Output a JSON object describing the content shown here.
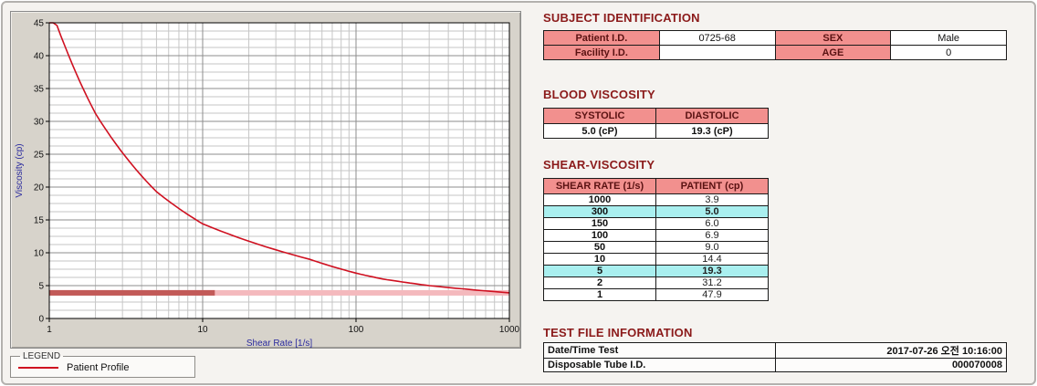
{
  "colors": {
    "heading": "#8b1a1a",
    "table_header_bg": "#f2908e",
    "table_header_text": "#5a1212",
    "highlight_row_bg": "#a9efef",
    "curve": "#cf1020",
    "band": "#f4b9bd",
    "band_dark": "#c25a58",
    "axis_label": "#2a2a9e"
  },
  "legend": {
    "title": "LEGEND",
    "items": [
      {
        "label": "Patient Profile",
        "color": "#cf1020"
      }
    ]
  },
  "subject_identification": {
    "heading": "SUBJECT IDENTIFICATION",
    "rows": [
      {
        "label1": "Patient I.D.",
        "value1": "0725-68",
        "label2": "SEX",
        "value2": "Male"
      },
      {
        "label1": "Facility I.D.",
        "value1": "",
        "label2": "AGE",
        "value2": "0"
      }
    ]
  },
  "blood_viscosity": {
    "heading": "BLOOD VISCOSITY",
    "headers": [
      "SYSTOLIC",
      "DIASTOLIC"
    ],
    "values": [
      "5.0 (cP)",
      "19.3 (cP)"
    ]
  },
  "shear_viscosity": {
    "heading": "SHEAR-VISCOSITY",
    "headers": [
      "SHEAR RATE (1/s)",
      "PATIENT (cp)"
    ],
    "rows": [
      {
        "rate": "1000",
        "value": "3.9",
        "highlight": false
      },
      {
        "rate": "300",
        "value": "5.0",
        "highlight": true
      },
      {
        "rate": "150",
        "value": "6.0",
        "highlight": false
      },
      {
        "rate": "100",
        "value": "6.9",
        "highlight": false
      },
      {
        "rate": "50",
        "value": "9.0",
        "highlight": false
      },
      {
        "rate": "10",
        "value": "14.4",
        "highlight": false
      },
      {
        "rate": "5",
        "value": "19.3",
        "highlight": true
      },
      {
        "rate": "2",
        "value": "31.2",
        "highlight": false
      },
      {
        "rate": "1",
        "value": "47.9",
        "highlight": false
      }
    ]
  },
  "test_file_information": {
    "heading": "TEST FILE INFORMATION",
    "rows": [
      {
        "label": "Date/Time Test",
        "value": "2017-07-26 오전 10:16:00"
      },
      {
        "label": "Disposable Tube I.D.",
        "value": "000070008"
      }
    ]
  },
  "chart_data": {
    "type": "line",
    "title": "",
    "xlabel": "Shear Rate [1/s]",
    "ylabel": "Viscosity (cp)",
    "x_scale": "log",
    "xlim": [
      1,
      1000
    ],
    "ylim": [
      0,
      45
    ],
    "x_ticks": [
      1,
      10,
      100,
      1000
    ],
    "y_ticks": [
      0,
      5,
      10,
      15,
      20,
      25,
      30,
      35,
      40,
      45
    ],
    "grid": true,
    "legend_position": "bottom-left-outside",
    "series": [
      {
        "name": "Patient Profile",
        "color": "#cf1020",
        "x": [
          1,
          2,
          5,
          10,
          50,
          100,
          150,
          300,
          1000
        ],
        "y": [
          47.9,
          31.2,
          19.3,
          14.4,
          9.0,
          6.9,
          6.0,
          5.0,
          3.9
        ]
      }
    ],
    "reference_band": {
      "y": 3.9,
      "color": "#f4b9bd",
      "dark_segment": {
        "x_start": 1,
        "x_end": 12,
        "color": "#c25a58"
      }
    }
  }
}
